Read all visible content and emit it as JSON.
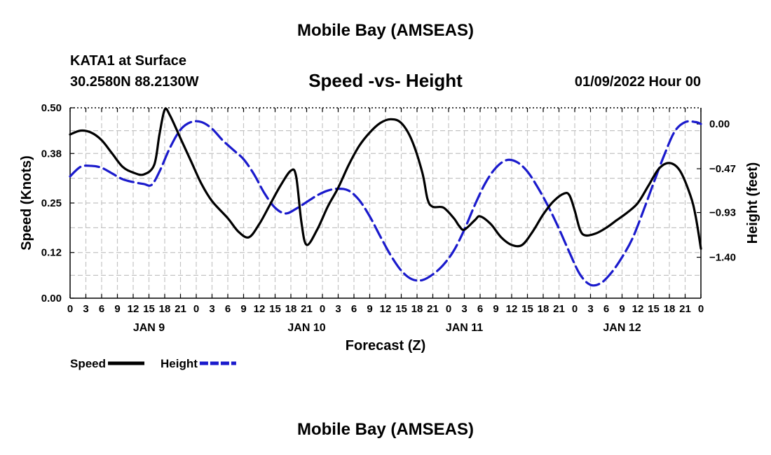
{
  "header": {
    "title": "Mobile Bay (AMSEAS)",
    "station": "KATA1 at Surface",
    "coords": "30.2580N  88.2130W",
    "subtitle": "Speed -vs- Height",
    "datetime": "01/09/2022 Hour 00"
  },
  "footer": {
    "title": "Mobile Bay (AMSEAS)"
  },
  "chart_data": {
    "type": "line",
    "title": "Speed -vs- Height",
    "xlabel": "Forecast (Z)",
    "ylabel": "Speed (Knots)",
    "ylabel_right": "Height (feet)",
    "x_hours": [
      0,
      3,
      6,
      9,
      12,
      15,
      18,
      21,
      24,
      27,
      30,
      33,
      36,
      39,
      42,
      45,
      48,
      51,
      54,
      57,
      60,
      63,
      66,
      69,
      72,
      75,
      78,
      81,
      84,
      87,
      90,
      93,
      96,
      99,
      102,
      105,
      108,
      111,
      114,
      117,
      120
    ],
    "x_tick_labels": [
      "0",
      "3",
      "6",
      "9",
      "12",
      "15",
      "18",
      "21",
      "0",
      "3",
      "6",
      "9",
      "12",
      "15",
      "18",
      "21",
      "0",
      "3",
      "6",
      "9",
      "12",
      "15",
      "18",
      "21",
      "0",
      "3",
      "6",
      "9",
      "12",
      "15",
      "18",
      "21",
      "0",
      "3",
      "6",
      "9",
      "12",
      "15",
      "18",
      "21",
      "0"
    ],
    "day_labels": [
      {
        "label": "JAN 9",
        "hour": 15
      },
      {
        "label": "JAN 10",
        "hour": 45
      },
      {
        "label": "JAN 11",
        "hour": 75
      },
      {
        "label": "JAN 12",
        "hour": 105
      }
    ],
    "xlim": [
      0,
      120
    ],
    "ylim_left": [
      0.0,
      0.5
    ],
    "yticks_left": [
      "0.00",
      "0.12",
      "0.25",
      "0.38",
      "0.50"
    ],
    "ylim_right": [
      -1.83,
      0.17
    ],
    "yticks_right": [
      "−1.40",
      "−0.93",
      "−0.47",
      "0.00"
    ],
    "grid": true,
    "series": [
      {
        "name": "Speed",
        "axis": "left",
        "color": "#000000",
        "style": "solid",
        "points": [
          [
            0,
            0.43
          ],
          [
            2,
            0.44
          ],
          [
            4,
            0.435
          ],
          [
            6,
            0.415
          ],
          [
            8,
            0.38
          ],
          [
            10,
            0.345
          ],
          [
            12,
            0.33
          ],
          [
            14,
            0.325
          ],
          [
            16,
            0.35
          ],
          [
            17,
            0.43
          ],
          [
            18,
            0.495
          ],
          [
            19,
            0.48
          ],
          [
            21,
            0.42
          ],
          [
            23,
            0.36
          ],
          [
            25,
            0.3
          ],
          [
            27,
            0.255
          ],
          [
            30,
            0.21
          ],
          [
            32,
            0.175
          ],
          [
            34,
            0.16
          ],
          [
            36,
            0.195
          ],
          [
            38,
            0.245
          ],
          [
            40,
            0.295
          ],
          [
            42,
            0.335
          ],
          [
            43,
            0.32
          ],
          [
            44,
            0.2
          ],
          [
            45,
            0.14
          ],
          [
            47,
            0.18
          ],
          [
            49,
            0.24
          ],
          [
            51,
            0.29
          ],
          [
            53,
            0.35
          ],
          [
            55,
            0.4
          ],
          [
            57,
            0.435
          ],
          [
            59,
            0.46
          ],
          [
            61,
            0.47
          ],
          [
            63,
            0.46
          ],
          [
            65,
            0.415
          ],
          [
            67,
            0.33
          ],
          [
            68,
            0.26
          ],
          [
            69,
            0.24
          ],
          [
            71,
            0.238
          ],
          [
            73,
            0.21
          ],
          [
            74,
            0.19
          ],
          [
            75,
            0.18
          ],
          [
            77,
            0.205
          ],
          [
            78,
            0.215
          ],
          [
            80,
            0.195
          ],
          [
            82,
            0.16
          ],
          [
            84,
            0.14
          ],
          [
            86,
            0.14
          ],
          [
            88,
            0.175
          ],
          [
            90,
            0.22
          ],
          [
            92,
            0.255
          ],
          [
            94,
            0.275
          ],
          [
            95,
            0.27
          ],
          [
            96,
            0.23
          ],
          [
            97,
            0.18
          ],
          [
            98,
            0.165
          ],
          [
            100,
            0.17
          ],
          [
            102,
            0.185
          ],
          [
            104,
            0.205
          ],
          [
            106,
            0.225
          ],
          [
            108,
            0.25
          ],
          [
            110,
            0.295
          ],
          [
            112,
            0.34
          ],
          [
            114,
            0.355
          ],
          [
            116,
            0.335
          ],
          [
            118,
            0.27
          ],
          [
            119,
            0.215
          ],
          [
            120,
            0.13
          ]
        ]
      },
      {
        "name": "Height",
        "axis": "right",
        "color": "#1a1acc",
        "style": "dashed",
        "points": [
          [
            0,
            -0.55
          ],
          [
            2,
            -0.45
          ],
          [
            4,
            -0.44
          ],
          [
            6,
            -0.46
          ],
          [
            8,
            -0.52
          ],
          [
            10,
            -0.58
          ],
          [
            12,
            -0.61
          ],
          [
            14,
            -0.63
          ],
          [
            15.5,
            -0.64
          ],
          [
            17,
            -0.5
          ],
          [
            19,
            -0.25
          ],
          [
            21,
            -0.06
          ],
          [
            23,
            0.02
          ],
          [
            25,
            0.02
          ],
          [
            27,
            -0.05
          ],
          [
            29,
            -0.17
          ],
          [
            31,
            -0.27
          ],
          [
            33,
            -0.37
          ],
          [
            35,
            -0.53
          ],
          [
            37,
            -0.73
          ],
          [
            39,
            -0.88
          ],
          [
            41,
            -0.94
          ],
          [
            43,
            -0.89
          ],
          [
            45,
            -0.82
          ],
          [
            47,
            -0.75
          ],
          [
            49,
            -0.7
          ],
          [
            51,
            -0.68
          ],
          [
            53,
            -0.7
          ],
          [
            55,
            -0.8
          ],
          [
            57,
            -0.97
          ],
          [
            59,
            -1.18
          ],
          [
            61,
            -1.38
          ],
          [
            63,
            -1.54
          ],
          [
            65,
            -1.63
          ],
          [
            67,
            -1.64
          ],
          [
            69,
            -1.58
          ],
          [
            71,
            -1.48
          ],
          [
            73,
            -1.33
          ],
          [
            75,
            -1.11
          ],
          [
            77,
            -0.85
          ],
          [
            79,
            -0.62
          ],
          [
            81,
            -0.46
          ],
          [
            83,
            -0.38
          ],
          [
            85,
            -0.4
          ],
          [
            87,
            -0.5
          ],
          [
            89,
            -0.67
          ],
          [
            91,
            -0.87
          ],
          [
            93,
            -1.1
          ],
          [
            95,
            -1.35
          ],
          [
            97,
            -1.58
          ],
          [
            99,
            -1.69
          ],
          [
            101,
            -1.67
          ],
          [
            103,
            -1.56
          ],
          [
            105,
            -1.4
          ],
          [
            107,
            -1.2
          ],
          [
            109,
            -0.92
          ],
          [
            111,
            -0.62
          ],
          [
            113,
            -0.33
          ],
          [
            115,
            -0.08
          ],
          [
            117,
            0.02
          ],
          [
            119,
            0.02
          ],
          [
            120,
            0.0
          ]
        ]
      }
    ],
    "legend_position": "bottom-left"
  }
}
